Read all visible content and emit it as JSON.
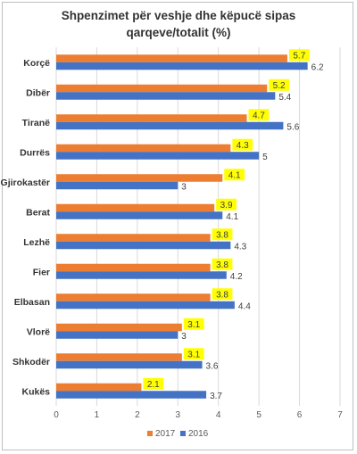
{
  "title_lines": [
    "Shpenzimet për veshje dhe këpucë sipas",
    "qarqeve/totalit (%)"
  ],
  "colors": {
    "series_2017": "#ED7D31",
    "series_2016": "#4472C4",
    "label_highlight": "#FFFF00",
    "gridline": "#d9d9d9"
  },
  "chart_data": {
    "type": "bar",
    "orientation": "horizontal",
    "title": "Shpenzimet për veshje dhe këpucë sipas qarqeve/totalit (%)",
    "categories": [
      "Korçë",
      "Dibër",
      "Tiranë",
      "Durrës",
      "Gjirokastër",
      "Berat",
      "Lezhë",
      "Fier",
      "Elbasan",
      "Vlorë",
      "Shkodër",
      "Kukës"
    ],
    "series": [
      {
        "name": "2017",
        "values": [
          5.7,
          5.2,
          4.7,
          4.3,
          4.1,
          3.9,
          3.8,
          3.8,
          3.8,
          3.1,
          3.1,
          2.1
        ]
      },
      {
        "name": "2016",
        "values": [
          6.2,
          5.4,
          5.6,
          5,
          3,
          4.1,
          4.3,
          4.2,
          4.4,
          3,
          3.6,
          3.7
        ]
      }
    ],
    "xlim": [
      0,
      7
    ],
    "xticks": [
      "0",
      "1",
      "2",
      "3",
      "4",
      "5",
      "6",
      "7"
    ],
    "grid": true,
    "legend": "bottom"
  }
}
